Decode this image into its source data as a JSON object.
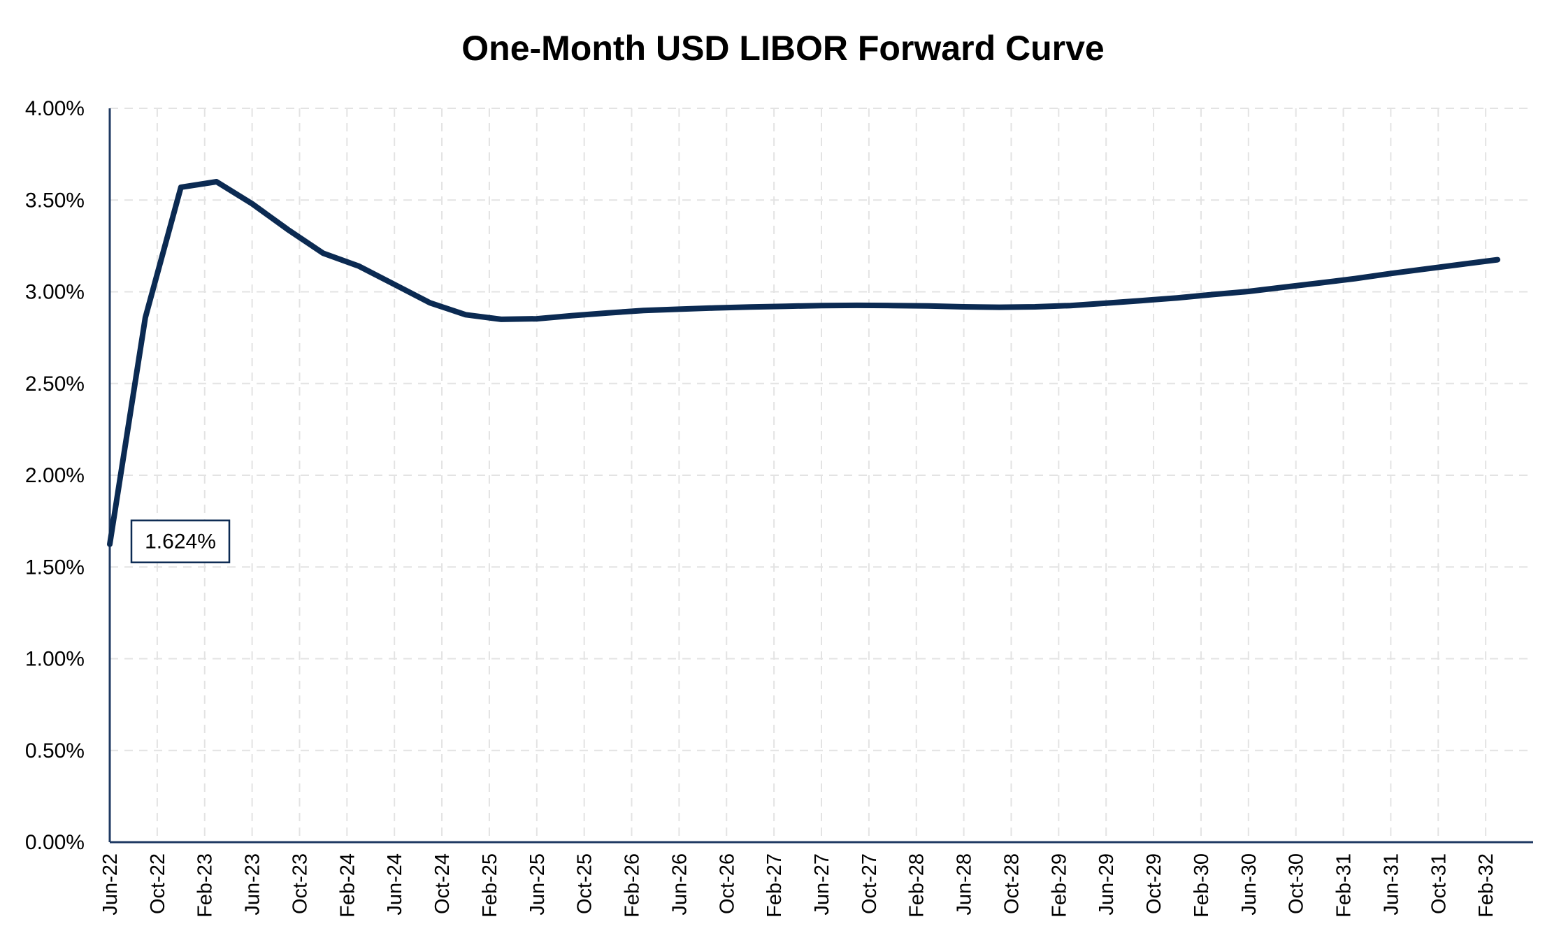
{
  "chart_data": {
    "type": "line",
    "title": "One-Month USD LIBOR Forward Curve",
    "xlabel": "",
    "ylabel": "",
    "ylim": [
      0,
      4
    ],
    "y_ticks": [
      "0.00%",
      "0.50%",
      "1.00%",
      "1.50%",
      "2.00%",
      "2.50%",
      "3.00%",
      "3.50%",
      "4.00%"
    ],
    "y_tick_values": [
      0,
      0.5,
      1,
      1.5,
      2,
      2.5,
      3,
      3.5,
      4
    ],
    "x_ticks": [
      "Jun-22",
      "Oct-22",
      "Feb-23",
      "Jun-23",
      "Oct-23",
      "Feb-24",
      "Jun-24",
      "Oct-24",
      "Feb-25",
      "Jun-25",
      "Oct-25",
      "Feb-26",
      "Jun-26",
      "Oct-26",
      "Feb-27",
      "Jun-27",
      "Oct-27",
      "Feb-28",
      "Jun-28",
      "Oct-28",
      "Feb-29",
      "Jun-29",
      "Oct-29",
      "Feb-30",
      "Jun-30",
      "Oct-30",
      "Feb-31",
      "Jun-31",
      "Oct-31",
      "Feb-32"
    ],
    "x_range": [
      "Jun-22",
      "Jun-32"
    ],
    "grid": true,
    "legend": "none",
    "series": [
      {
        "color": "#0b2a52",
        "points": [
          {
            "x": "Jun-22",
            "y": 1.624
          },
          {
            "x": "Sep-22",
            "y": 2.86
          },
          {
            "x": "Dec-22",
            "y": 3.57
          },
          {
            "x": "Mar-23",
            "y": 3.6
          },
          {
            "x": "Jun-23",
            "y": 3.48
          },
          {
            "x": "Sep-23",
            "y": 3.34
          },
          {
            "x": "Dec-23",
            "y": 3.21
          },
          {
            "x": "Mar-24",
            "y": 3.14
          },
          {
            "x": "Jun-24",
            "y": 3.04
          },
          {
            "x": "Sep-24",
            "y": 2.94
          },
          {
            "x": "Dec-24",
            "y": 2.875
          },
          {
            "x": "Mar-25",
            "y": 2.85
          },
          {
            "x": "Jun-25",
            "y": 2.853
          },
          {
            "x": "Sep-25",
            "y": 2.87
          },
          {
            "x": "Dec-25",
            "y": 2.885
          },
          {
            "x": "Mar-26",
            "y": 2.898
          },
          {
            "x": "Jun-26",
            "y": 2.905
          },
          {
            "x": "Sep-26",
            "y": 2.912
          },
          {
            "x": "Dec-26",
            "y": 2.917
          },
          {
            "x": "Mar-27",
            "y": 2.921
          },
          {
            "x": "Jun-27",
            "y": 2.925
          },
          {
            "x": "Sep-27",
            "y": 2.926
          },
          {
            "x": "Dec-27",
            "y": 2.925
          },
          {
            "x": "Mar-28",
            "y": 2.923
          },
          {
            "x": "Jun-28",
            "y": 2.918
          },
          {
            "x": "Sep-28",
            "y": 2.916
          },
          {
            "x": "Dec-28",
            "y": 2.918
          },
          {
            "x": "Mar-29",
            "y": 2.925
          },
          {
            "x": "Jun-29",
            "y": 2.938
          },
          {
            "x": "Sep-29",
            "y": 2.952
          },
          {
            "x": "Dec-29",
            "y": 2.967
          },
          {
            "x": "Mar-30",
            "y": 2.985
          },
          {
            "x": "Jun-30",
            "y": 3.002
          },
          {
            "x": "Sep-30",
            "y": 3.025
          },
          {
            "x": "Dec-30",
            "y": 3.048
          },
          {
            "x": "Mar-31",
            "y": 3.072
          },
          {
            "x": "Jun-31",
            "y": 3.1
          },
          {
            "x": "Sep-31",
            "y": 3.125
          },
          {
            "x": "Dec-31",
            "y": 3.15
          },
          {
            "x": "Mar-32",
            "y": 3.175
          }
        ]
      }
    ],
    "annotations": [
      {
        "text": "1.624%",
        "x": "Jun-22",
        "y": 1.624
      }
    ]
  }
}
